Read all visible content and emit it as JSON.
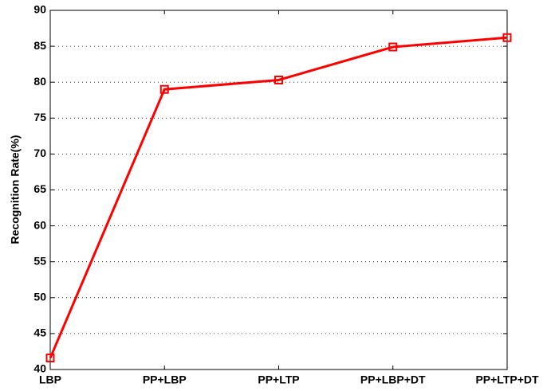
{
  "chart_data": {
    "type": "line",
    "y_label": "Recognition Rate(%)",
    "categories": [
      "LBP",
      "PP+LBP",
      "PP+LTP",
      "PP+LBP+DT",
      "PP+LTP+DT"
    ],
    "series": [
      {
        "name": "Recognition Rate",
        "color": "#ff0000",
        "values": [
          41.6,
          79.0,
          80.3,
          84.9,
          86.2
        ]
      }
    ],
    "ylim": [
      40,
      90
    ],
    "yticks": [
      40,
      45,
      50,
      55,
      60,
      65,
      70,
      75,
      80,
      85,
      90
    ],
    "grid": true
  }
}
